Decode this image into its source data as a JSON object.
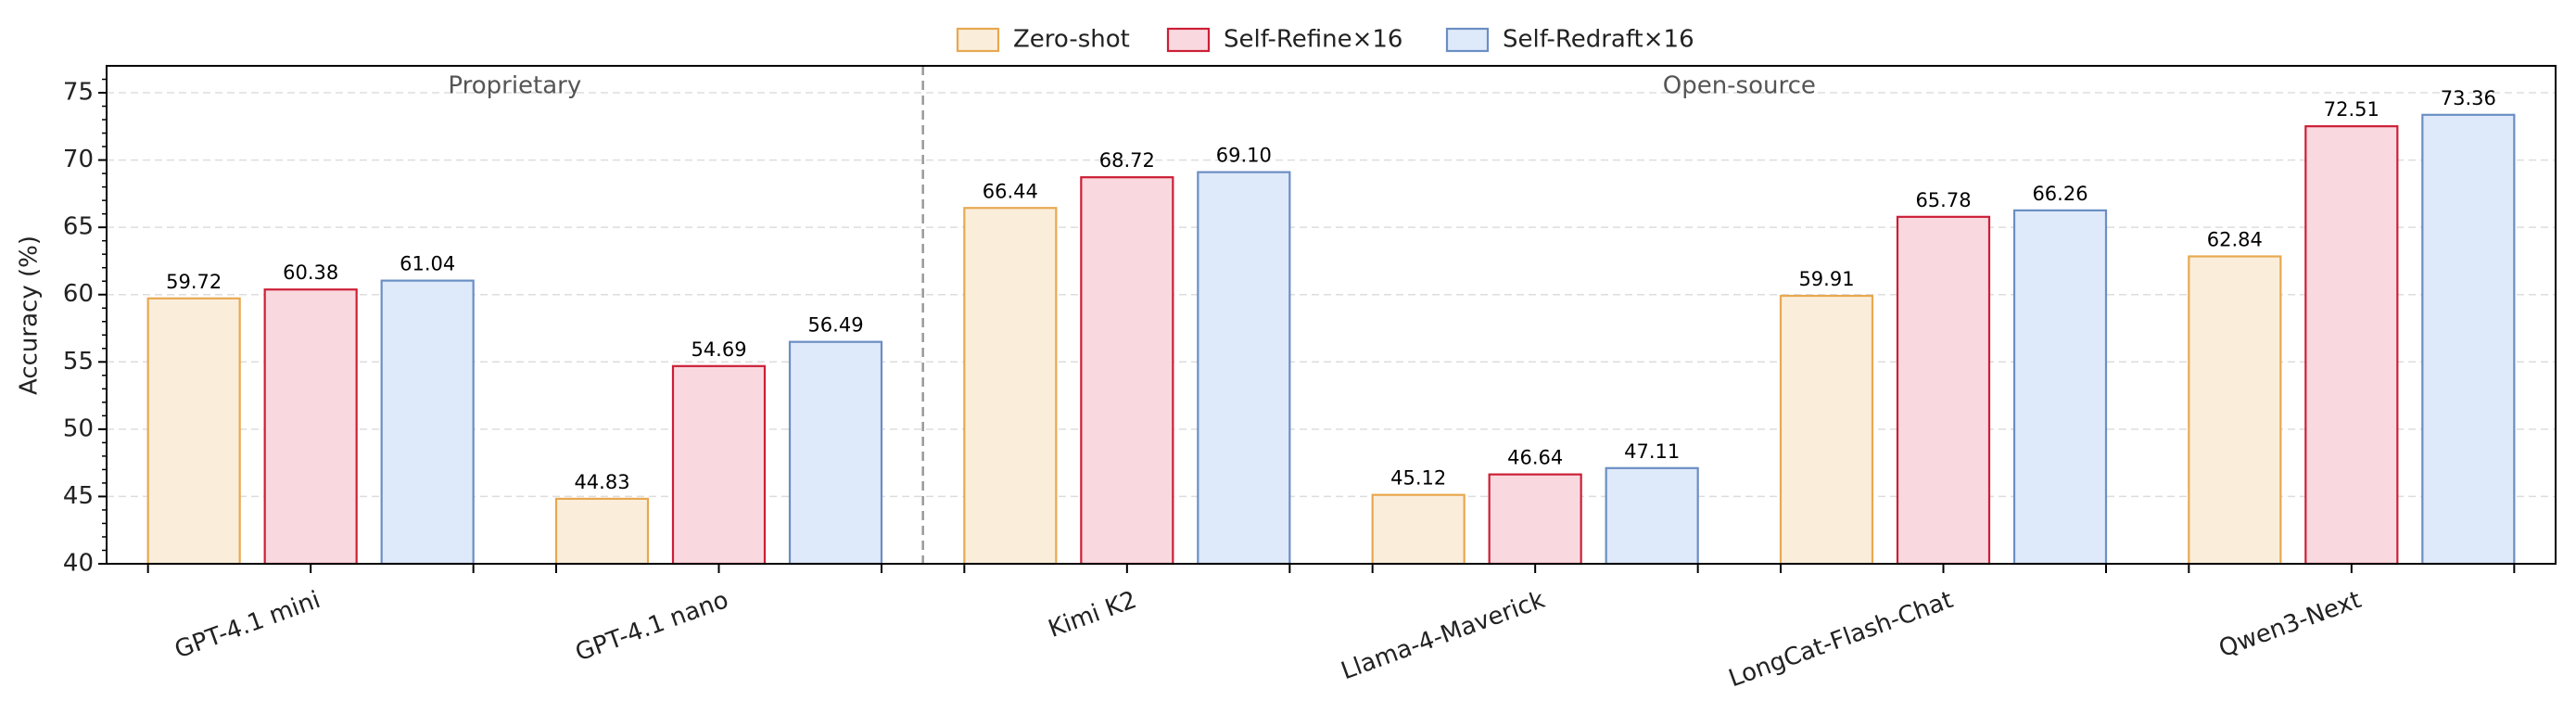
{
  "chart_data": {
    "type": "bar",
    "ylabel": "Accuracy (%)",
    "annotations": [
      "Proprietary",
      "Open-source"
    ],
    "categories": [
      "GPT-4.1 mini",
      "GPT-4.1 nano",
      "Kimi K2",
      "Llama-4-Maverick",
      "LongCat-Flash-Chat",
      "Qwen3-Next"
    ],
    "series": [
      {
        "name": "Zero-shot",
        "color": "#faeedb",
        "edgecolor": "#e8a850",
        "values": [
          59.72,
          44.83,
          66.44,
          45.12,
          59.91,
          62.84
        ],
        "value_labels": [
          "59.72",
          "44.83",
          "66.44",
          "45.12",
          "59.91",
          "62.84"
        ]
      },
      {
        "name": "Self-Refine×16",
        "color": "#f9d9df",
        "edgecolor": "#cc1f36",
        "values": [
          60.38,
          54.69,
          68.72,
          46.64,
          65.78,
          72.51
        ],
        "value_labels": [
          "60.38",
          "54.69",
          "68.72",
          "46.64",
          "65.78",
          "72.51"
        ]
      },
      {
        "name": "Self-Redraft×16",
        "color": "#deeafa",
        "edgecolor": "#6b8ec4",
        "values": [
          61.04,
          56.49,
          69.1,
          47.11,
          66.26,
          73.36
        ],
        "value_labels": [
          "61.04",
          "56.49",
          "69.10",
          "47.11",
          "66.26",
          "73.36"
        ]
      }
    ],
    "ylim": [
      40,
      77
    ],
    "yticks": [
      40,
      45,
      50,
      55,
      60,
      65,
      70,
      75
    ],
    "grid": true,
    "legend": "upper center"
  }
}
